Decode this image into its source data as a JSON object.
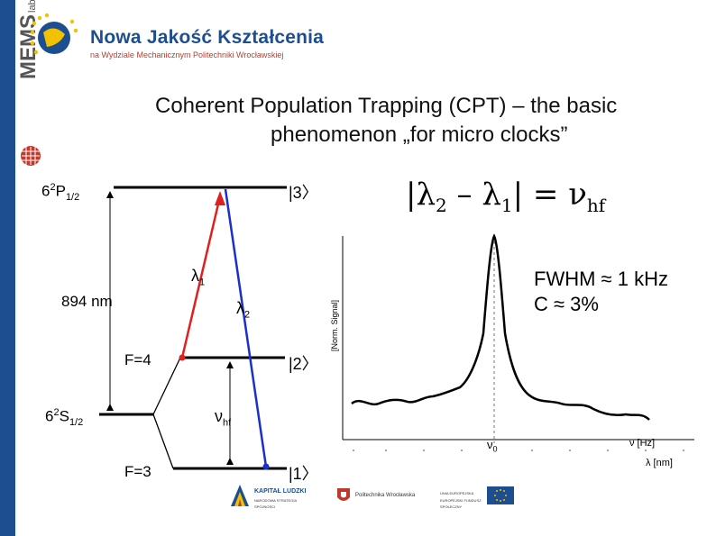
{
  "header": {
    "org_title": "Nowa Jakość Kształcenia",
    "org_subtitle": "na Wydziale Mechanicznym Politechniki Wrocławskiej",
    "mems": "MEMS",
    "mems_lab": "lab"
  },
  "slide": {
    "title_line1": "Coherent Population Trapping (CPT) – the basic",
    "title_line2": "phenomenon „for  micro clocks”"
  },
  "diagram": {
    "level_top": "62P1/2",
    "level_bottom": "62S1/2",
    "wavelength": "894 nm",
    "f4": "F=4",
    "f3": "F=3",
    "ket3": "|3〉",
    "ket2": "|2〉",
    "ket1": "|1〉",
    "lambda1": "λ1",
    "lambda2": "λ2",
    "nu_hf": "νhf"
  },
  "formula": "|λ2 – λ1| = νhf",
  "fwhm_line1": "FWHM ≈ 1 kHz",
  "fwhm_line2": "C ≈ 3%",
  "chart_data": {
    "type": "line",
    "ylabel": "[Norm. Signal]",
    "x_tick": "ν0",
    "x_axis_unit1": "ν [Hz]",
    "x_axis_unit2": "λ [nm]"
  },
  "footer": {
    "kapital": "KAPITAŁ LUDZKI",
    "kapital_sub": "NARODOWA STRATEGIA SPÓJNOŚCI",
    "polit": "Politechnika Wrocławska",
    "ue": "UNIA EUROPEJSKA",
    "ue_sub": "EUROPEJSKI FUNDUSZ SPOŁECZNY"
  },
  "colors": {
    "brand_blue": "#1d4e8f",
    "red_beam": "#e02020",
    "blue_beam": "#1a2fcc"
  }
}
